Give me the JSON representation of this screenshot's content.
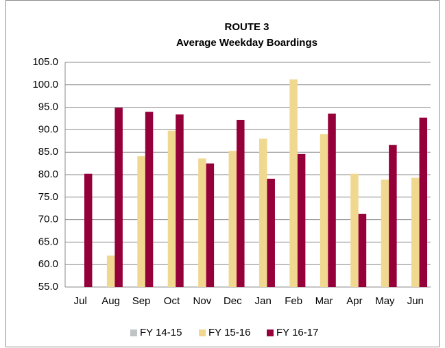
{
  "chart_data": {
    "type": "bar",
    "title": "ROUTE 3",
    "subtitle": "Average Weekday Boardings",
    "categories": [
      "Jul",
      "Aug",
      "Sep",
      "Oct",
      "Nov",
      "Dec",
      "Jan",
      "Feb",
      "Mar",
      "Apr",
      "May",
      "Jun"
    ],
    "series": [
      {
        "name": "FY 14-15",
        "color": "#c0c4c4",
        "values": [
          null,
          null,
          null,
          null,
          null,
          null,
          null,
          null,
          null,
          null,
          null,
          null
        ]
      },
      {
        "name": "FY 15-16",
        "color": "#f0d890",
        "values": [
          null,
          62,
          84.1,
          89.8,
          83.6,
          85.3,
          88,
          101.2,
          89,
          80.2,
          78.9,
          79.3
        ]
      },
      {
        "name": "FY 16-17",
        "color": "#96003a",
        "values": [
          80.2,
          94.9,
          94,
          93.4,
          82.5,
          92.2,
          79.1,
          84.6,
          93.6,
          71.3,
          86.6,
          92.7
        ]
      }
    ],
    "ylim": [
      55,
      105
    ],
    "yticks": [
      {
        "value": 55,
        "label": "55.0"
      },
      {
        "value": 60,
        "label": "60.0"
      },
      {
        "value": 65,
        "label": "65.0"
      },
      {
        "value": 70,
        "label": "70.0"
      },
      {
        "value": 75,
        "label": "75.0"
      },
      {
        "value": 80,
        "label": "80.0"
      },
      {
        "value": 85,
        "label": "85.0"
      },
      {
        "value": 90,
        "label": "90.0"
      },
      {
        "value": 95,
        "label": "95.0"
      },
      {
        "value": 100,
        "label": "100.0"
      },
      {
        "value": 105,
        "label": "105.0"
      }
    ],
    "grid": true,
    "legend": "bottom"
  }
}
